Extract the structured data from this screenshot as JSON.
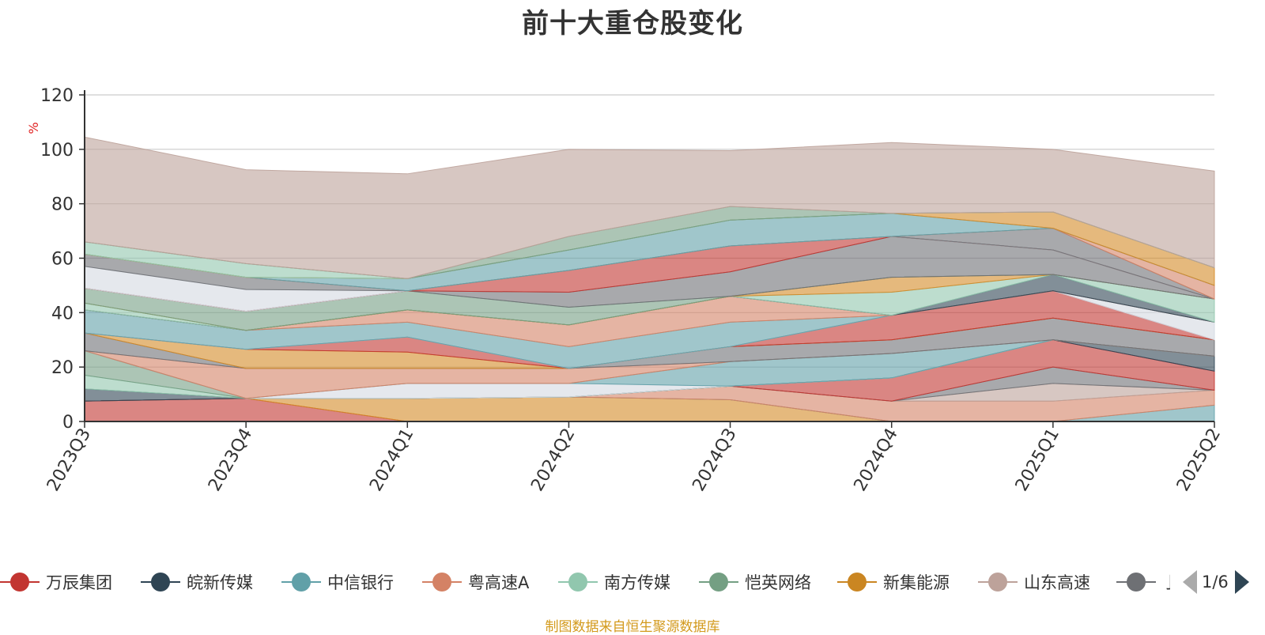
{
  "title": "前十大重仓股变化",
  "source_note": "制图数据来自恒生聚源数据库",
  "legend_page": "1/6",
  "chart_data": {
    "type": "area",
    "stacked": true,
    "x": [
      "2023Q3",
      "2023Q4",
      "2024Q1",
      "2024Q2",
      "2024Q3",
      "2024Q4",
      "2025Q1",
      "2025Q2"
    ],
    "ylabel": "%",
    "ylim": [
      0,
      120
    ],
    "yticks": [
      0,
      20,
      40,
      60,
      80,
      100,
      120
    ],
    "grid": true,
    "legend_position": "bottom",
    "series": [
      {
        "name": "万辰集团",
        "color": "#c23531",
        "values": [
          7.5,
          8.5,
          0,
          0,
          0,
          0,
          0,
          0
        ]
      },
      {
        "name": "新集能源",
        "color": "#d48a27",
        "values": [
          0,
          0,
          8.5,
          9,
          8,
          0,
          0,
          0
        ]
      },
      {
        "name": "中信银行",
        "color": "#61a0a8",
        "values": [
          0,
          0,
          0,
          0,
          0,
          0,
          0,
          6
        ]
      },
      {
        "name": "粤高速A",
        "color": "#d48265",
        "values": [
          0,
          0,
          0,
          0,
          5,
          7.5,
          7.5,
          5.5
        ]
      },
      {
        "name": "山东高速",
        "color": "#bda29a",
        "values": [
          0,
          0,
          0,
          0,
          0,
          0,
          6.5,
          0
        ]
      },
      {
        "name": "",
        "color": "#6e7074",
        "values": [
          0,
          0,
          0,
          0,
          0,
          0,
          6,
          0
        ]
      },
      {
        "name": "",
        "color": "#c23531",
        "values": [
          0,
          0,
          0,
          0,
          0,
          8.5,
          10,
          7
        ]
      },
      {
        "name": "皖新传媒",
        "color": "#2f4554",
        "values": [
          4.5,
          0,
          0,
          0,
          0,
          0,
          0,
          5.5
        ]
      },
      {
        "name": "南方传媒",
        "color": "#91c7ae",
        "values": [
          5,
          0,
          0,
          0,
          0,
          0,
          0,
          0
        ]
      },
      {
        "name": "恺英网络",
        "color": "#749f83",
        "values": [
          9,
          0,
          0,
          0,
          0,
          0,
          0,
          0
        ]
      },
      {
        "name": "",
        "color": "#d3d9e1",
        "values": [
          0,
          0,
          5.5,
          5,
          0,
          0,
          0,
          0
        ]
      },
      {
        "name": "",
        "color": "#61a0a8",
        "values": [
          0,
          0,
          0,
          0,
          9,
          9,
          0,
          0
        ]
      },
      {
        "name": "",
        "color": "#d48265",
        "values": [
          0,
          11,
          5.5,
          5.5,
          0,
          0,
          0,
          0
        ]
      },
      {
        "name": "",
        "color": "#6e7074",
        "values": [
          6.5,
          0,
          0,
          0,
          5.5,
          5,
          8,
          6
        ]
      },
      {
        "name": "",
        "color": "#d48a27",
        "values": [
          0,
          7,
          6,
          0,
          0,
          0,
          0,
          0
        ]
      },
      {
        "name": "",
        "color": "#c23531",
        "values": [
          0,
          0,
          5.5,
          0,
          0,
          9,
          10,
          0
        ]
      },
      {
        "name": "",
        "color": "#d3d9e1",
        "values": [
          0,
          0,
          0,
          0,
          0,
          0,
          0,
          6.5
        ]
      },
      {
        "name": "",
        "color": "#61a0a8",
        "values": [
          8.5,
          7,
          5.5,
          8,
          9,
          0,
          0,
          0
        ]
      },
      {
        "name": "",
        "color": "#d48265",
        "values": [
          0,
          0,
          4.5,
          8,
          9.5,
          0,
          0,
          0
        ]
      },
      {
        "name": "",
        "color": "#2f4554",
        "values": [
          0,
          0,
          0,
          0,
          0,
          0,
          6,
          0
        ]
      },
      {
        "name": "",
        "color": "#91c7ae",
        "values": [
          2.5,
          0,
          0,
          0,
          0,
          8.5,
          0,
          8.5
        ]
      },
      {
        "name": "",
        "color": "#d48a27",
        "values": [
          0,
          0,
          0,
          0,
          0,
          5.5,
          0,
          0
        ]
      },
      {
        "name": "",
        "color": "#749f83",
        "values": [
          5.5,
          7,
          7,
          6.5,
          0,
          0,
          0,
          0
        ]
      },
      {
        "name": "",
        "color": "#6e7074",
        "values": [
          0,
          0,
          0,
          5.5,
          9,
          15,
          9,
          0
        ]
      },
      {
        "name": "",
        "color": "#c23531",
        "values": [
          0,
          0,
          0,
          8,
          9.5,
          0,
          0,
          0
        ]
      },
      {
        "name": "",
        "color": "#d3d9e1",
        "values": [
          8,
          8,
          0,
          0,
          0,
          0,
          0,
          0
        ]
      },
      {
        "name": "",
        "color": "#6e7074",
        "values": [
          4.5,
          4.5,
          0,
          0,
          0,
          0,
          8,
          0
        ]
      },
      {
        "name": "",
        "color": "#d48265",
        "values": [
          0,
          0,
          0,
          0,
          0,
          0,
          0,
          5
        ]
      },
      {
        "name": "",
        "color": "#61a0a8",
        "values": [
          0,
          0,
          4.5,
          7.5,
          9.5,
          8.5,
          0,
          0
        ]
      },
      {
        "name": "",
        "color": "#d48a27",
        "values": [
          0,
          0,
          0,
          0,
          0,
          0,
          6,
          6.5
        ]
      },
      {
        "name": "",
        "color": "#91c7ae",
        "values": [
          4.5,
          5,
          0,
          0,
          0,
          0,
          0,
          0
        ]
      },
      {
        "name": "",
        "color": "#749f83",
        "values": [
          0,
          0,
          0,
          5,
          5,
          0,
          0,
          0
        ]
      },
      {
        "name": "",
        "color": "#bda29a",
        "values": [
          38.5,
          34.5,
          38.5,
          32,
          20.5,
          26,
          23,
          35.5
        ]
      }
    ]
  },
  "legend": [
    {
      "label": "万辰集团",
      "color": "#c23531"
    },
    {
      "label": "皖新传媒",
      "color": "#2f4554"
    },
    {
      "label": "中信银行",
      "color": "#61a0a8"
    },
    {
      "label": "粤高速A",
      "color": "#d48265"
    },
    {
      "label": "南方传媒",
      "color": "#91c7ae"
    },
    {
      "label": "恺英网络",
      "color": "#749f83"
    },
    {
      "label": "新集能源",
      "color": "#ca8622"
    },
    {
      "label": "山东高速",
      "color": "#bda29a"
    },
    {
      "label": "亅",
      "color": "#6e7074"
    }
  ]
}
